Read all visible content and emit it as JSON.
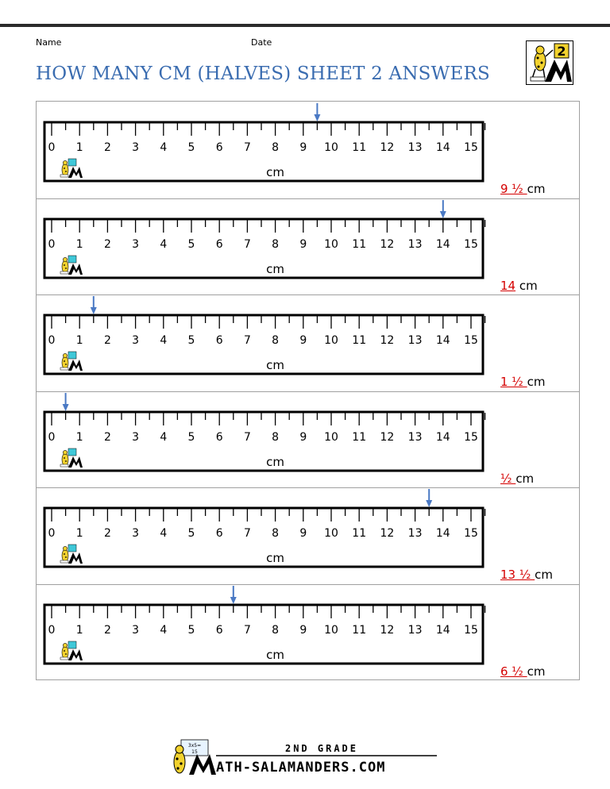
{
  "header": {
    "name_label": "Name",
    "date_label": "Date",
    "title": "HOW MANY CM (HALVES) SHEET 2 ANSWERS",
    "logo_grade": "2"
  },
  "ruler": {
    "numbers": [
      "0",
      "1",
      "2",
      "3",
      "4",
      "5",
      "6",
      "7",
      "8",
      "9",
      "10",
      "11",
      "12",
      "13",
      "14",
      "15"
    ],
    "unit": "cm"
  },
  "questions": [
    {
      "arrow_cm": 9.5,
      "answer": "9 ½ ",
      "unit": "cm"
    },
    {
      "arrow_cm": 14,
      "answer": "14",
      "unit": "cm"
    },
    {
      "arrow_cm": 1.5,
      "answer": "1 ½ ",
      "unit": "cm"
    },
    {
      "arrow_cm": 0.5,
      "answer": "½ ",
      "unit": "cm"
    },
    {
      "arrow_cm": 13.5,
      "answer": "13 ½ ",
      "unit": "cm"
    },
    {
      "arrow_cm": 6.5,
      "answer": "6 ½ ",
      "unit": "cm"
    }
  ],
  "footer": {
    "grade_text": "2ND GRADE",
    "site_text": "ATH-SALAMANDERS.COM",
    "badge_text_1": "3x5=",
    "badge_text_2": "15"
  },
  "colors": {
    "title": "#3a6cb0",
    "arrow": "#4a79c4",
    "answer": "#d40000",
    "logo_teal": "#3fc8d8",
    "logo_yellow": "#f2d22e"
  }
}
